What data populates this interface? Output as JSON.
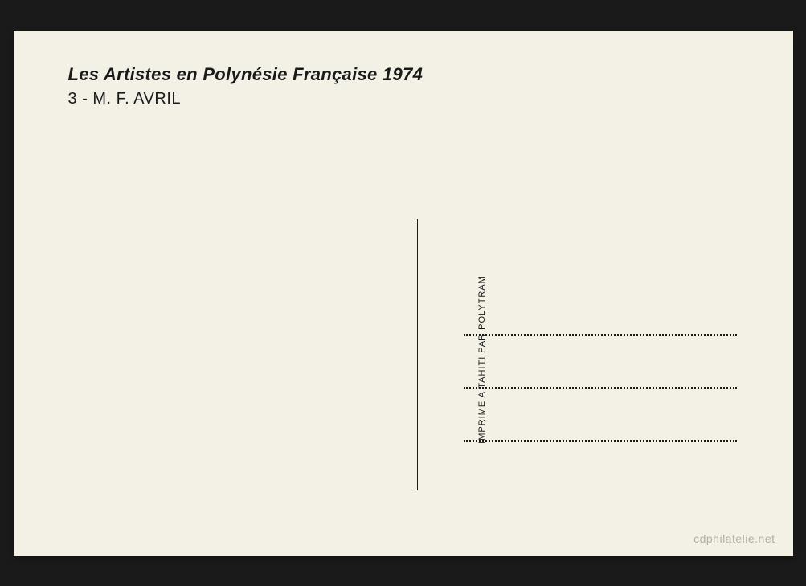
{
  "header": {
    "title": "Les Artistes en Polynésie Française 1974",
    "subtitle": "3 - M. F. AVRIL"
  },
  "printer": {
    "text": "IMPRIME A TAHITI PAR POLYTRAM"
  },
  "watermark": {
    "text": "cdphilatelie.net"
  },
  "layout": {
    "postcard_bg": "#f3f0e6",
    "page_bg": "#1a1a1a",
    "text_color": "#1a1a1a",
    "watermark_color": "#b0b0a8",
    "address_line_count": 3
  }
}
